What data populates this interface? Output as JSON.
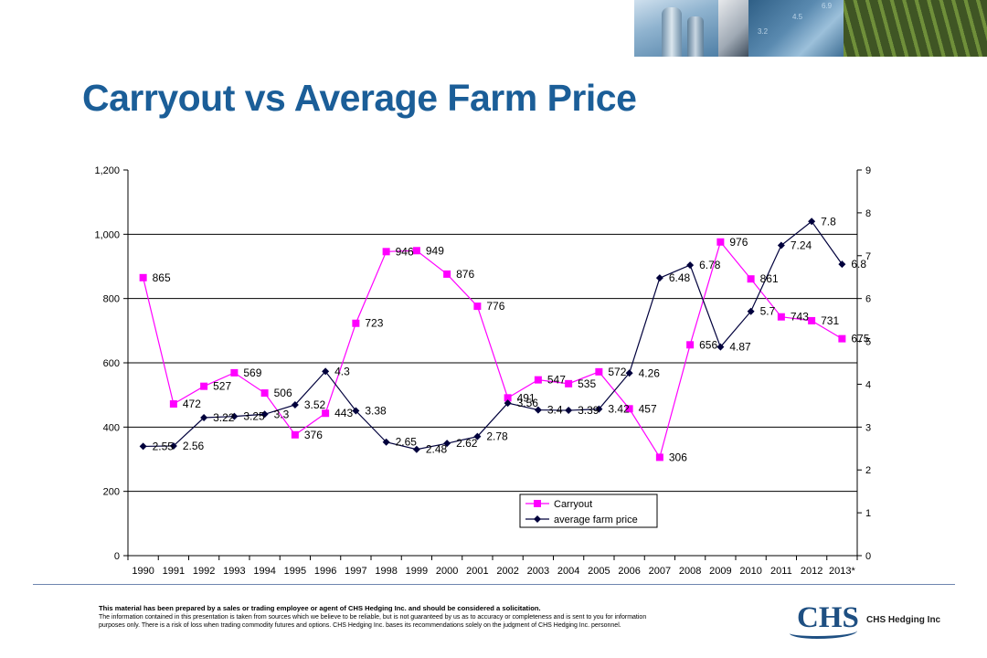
{
  "title": "Carryout vs Average Farm Price",
  "chart_data": {
    "type": "line",
    "categories": [
      "1990",
      "1991",
      "1992",
      "1993",
      "1994",
      "1995",
      "1996",
      "1997",
      "1998",
      "1999",
      "2000",
      "2001",
      "2002",
      "2003",
      "2004",
      "2005",
      "2006",
      "2007",
      "2008",
      "2009",
      "2010",
      "2011",
      "2012",
      "2013*"
    ],
    "series": [
      {
        "name": "Carryout",
        "axis": "left",
        "color": "#ff00ff",
        "marker": "square",
        "values": [
          865,
          472,
          527,
          569,
          506,
          376,
          443,
          723,
          946,
          949,
          876,
          776,
          491,
          547,
          535,
          572,
          457,
          306,
          656,
          976,
          861,
          743,
          731,
          675
        ],
        "labels": [
          "865",
          "472",
          "527",
          "569",
          "506",
          "376",
          "443",
          "723",
          "946",
          "949",
          "876",
          "776",
          "491",
          "547",
          "535",
          "572",
          "457",
          "306",
          "656",
          "976",
          "861",
          "743",
          "731",
          "675"
        ]
      },
      {
        "name": "average farm price",
        "axis": "right",
        "color": "#00003c",
        "marker": "diamond",
        "values": [
          2.55,
          2.56,
          3.22,
          3.25,
          3.3,
          3.52,
          4.3,
          3.38,
          2.65,
          2.48,
          2.62,
          2.78,
          3.56,
          3.4,
          3.39,
          3.42,
          4.26,
          6.48,
          6.78,
          4.87,
          5.7,
          7.24,
          7.8,
          6.8
        ],
        "labels": [
          "2.55",
          "2.56",
          "3.22",
          "3.25",
          "3.3",
          "3.52",
          "4.3",
          "3.38",
          "2.65",
          "2.48",
          "2.62",
          "2.78",
          "3.56",
          "3.4",
          "3.39",
          "3.42",
          "4.26",
          "6.48",
          "6.78",
          "4.87",
          "5.7",
          "7.24",
          "7.8",
          "6.8"
        ]
      }
    ],
    "y_left": {
      "min": 0,
      "max": 1200,
      "step": 200,
      "tick_labels": [
        "0",
        "200",
        "400",
        "600",
        "800",
        "1,000",
        "1,200"
      ]
    },
    "y_right": {
      "min": 0,
      "max": 9,
      "step": 1,
      "tick_labels": [
        "0",
        "1",
        "2",
        "3",
        "4",
        "5",
        "6",
        "7",
        "8",
        "9"
      ]
    },
    "gridlines": [
      200,
      400,
      600,
      800,
      1000
    ],
    "legend": {
      "position": "bottom-center",
      "entries": [
        "Carryout",
        "average farm price"
      ]
    }
  },
  "footer": {
    "disclaimer_bold": "This material has been prepared by a sales or trading employee or agent of CHS Hedging Inc. and should be considered a solicitation.",
    "disclaimer_body": "The information contained in this presentation is taken from sources which we believe to be reliable, but is not guaranteed by us as to accuracy or completeness and is sent to you for information purposes only. There is a risk of loss when trading commodity futures and options. CHS Hedging Inc. bases its recommendations solely on the judgment of CHS Hedging Inc. personnel.",
    "logo_text": "CHS",
    "company_name": "CHS Hedging Inc"
  },
  "header_images": {
    "overlay_numbers": [
      "3.2",
      "4.5",
      "6.9"
    ]
  }
}
